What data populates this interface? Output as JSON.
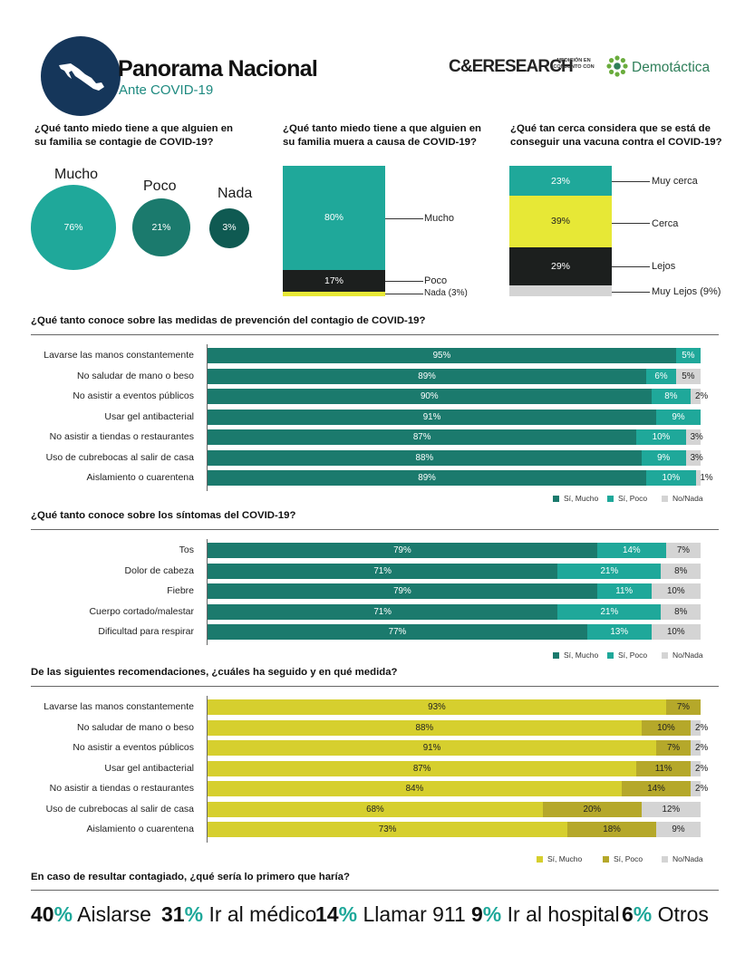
{
  "header": {
    "title": "Panorama Nacional",
    "subtitle": "Ante COVID-19",
    "brand_left": "C&ERESEARCH",
    "brand_middle": "MEDICIÓN EN CONJUNTO CON",
    "brand_right": "Demotáctica"
  },
  "colors": {
    "navy": "#15365a",
    "teal_dark": "#1b7a6d",
    "teal": "#1fa89a",
    "teal_mid": "#14756a",
    "teal_darkest": "#0f5a52",
    "black": "#1c1f1e",
    "yellow": "#e7e836",
    "gray": "#d4d4d4",
    "yellow_dark": "#d6cf2e",
    "olive": "#b5a82a",
    "green_bar": "#1b7a6d"
  },
  "q1": {
    "question": "¿Qué tanto miedo tiene a que alguien en su familia se contagie de COVID-19?",
    "items": [
      {
        "label": "Mucho",
        "value": "76%"
      },
      {
        "label": "Poco",
        "value": "21%"
      },
      {
        "label": "Nada",
        "value": "3%"
      }
    ]
  },
  "q2": {
    "question": "¿Qué tanto miedo tiene a que alguien en su familia muera a causa de COVID-19?",
    "items": [
      {
        "label": "Mucho",
        "value": "80%"
      },
      {
        "label": "Poco",
        "value": "17%"
      },
      {
        "label": "Nada (3%)",
        "value": ""
      }
    ]
  },
  "q3": {
    "question": "¿Qué tan cerca considera que se está de conseguir una vacuna contra el COVID-19?",
    "items": [
      {
        "label": "Muy cerca",
        "value": "23%"
      },
      {
        "label": "Cerca",
        "value": "39%"
      },
      {
        "label": "Lejos",
        "value": "29%"
      },
      {
        "label": "Muy Lejos (9%)",
        "value": ""
      }
    ]
  },
  "q4": {
    "question": "¿Qué tanto conoce sobre las medidas de prevención del contagio de COVID-19?",
    "legend": [
      "Sí, Mucho",
      "Sí, Poco",
      "No/Nada"
    ]
  },
  "q5": {
    "question": "¿Qué tanto conoce sobre los síntomas del COVID-19?",
    "legend": [
      "Sí, Mucho",
      "Sí, Poco",
      "No/Nada"
    ]
  },
  "q6": {
    "question": "De las siguientes recomendaciones, ¿cuáles ha seguido y en qué medida?",
    "legend": [
      "Sí, Mucho",
      "Sí, Poco",
      "No/Nada"
    ]
  },
  "q7": {
    "question": "En caso de resultar contagiado,  ¿qué sería lo primero que haría?",
    "items": [
      {
        "pct": "40",
        "sign": "%",
        "label": "Aislarse"
      },
      {
        "pct": "31",
        "sign": "%",
        "label": "Ir al médico"
      },
      {
        "pct": "14",
        "sign": "%",
        "label": "Llamar 911"
      },
      {
        "pct": "9",
        "sign": "%",
        "label": "Ir al hospital"
      },
      {
        "pct": "6",
        "sign": "%",
        "label": "Otros"
      }
    ]
  },
  "chart_data": [
    {
      "type": "bar",
      "title": "¿Qué tanto miedo tiene a que alguien en su familia se contagie de COVID-19?",
      "categories": [
        "Mucho",
        "Poco",
        "Nada"
      ],
      "values": [
        76,
        21,
        3
      ]
    },
    {
      "type": "bar",
      "title": "¿Qué tanto miedo tiene a que alguien en su familia muera a causa de COVID-19?",
      "categories": [
        "Mucho",
        "Poco",
        "Nada"
      ],
      "values": [
        80,
        17,
        3
      ]
    },
    {
      "type": "bar",
      "title": "¿Qué tan cerca considera que se está de conseguir una vacuna contra el COVID-19?",
      "categories": [
        "Muy cerca",
        "Cerca",
        "Lejos",
        "Muy Lejos"
      ],
      "values": [
        23,
        39,
        29,
        9
      ]
    },
    {
      "type": "bar",
      "title": "¿Qué tanto conoce sobre las medidas de prevención del contagio de COVID-19?",
      "categories": [
        "Lavarse las manos constantemente",
        "No saludar de mano o beso",
        "No asistir a eventos públicos",
        "Usar gel antibacterial",
        "No asistir a tiendas o restaurantes",
        "Uso de cubrebocas al salir de casa",
        "Aislamiento o cuarentena"
      ],
      "series": [
        {
          "name": "Sí, Mucho",
          "values": [
            95,
            89,
            90,
            91,
            87,
            88,
            89
          ]
        },
        {
          "name": "Sí, Poco",
          "values": [
            5,
            6,
            8,
            9,
            10,
            9,
            10
          ]
        },
        {
          "name": "No/Nada",
          "values": [
            null,
            5,
            2,
            null,
            3,
            3,
            1
          ]
        }
      ]
    },
    {
      "type": "bar",
      "title": "¿Qué tanto conoce sobre los síntomas del COVID-19?",
      "categories": [
        "Tos",
        "Dolor de cabeza",
        "Fiebre",
        "Cuerpo cortado/malestar",
        "Dificultad para respirar"
      ],
      "series": [
        {
          "name": "Sí, Mucho",
          "values": [
            79,
            71,
            79,
            71,
            77
          ]
        },
        {
          "name": "Sí, Poco",
          "values": [
            14,
            21,
            11,
            21,
            13
          ]
        },
        {
          "name": "No/Nada",
          "values": [
            7,
            8,
            10,
            8,
            10
          ]
        }
      ]
    },
    {
      "type": "bar",
      "title": "De las siguientes recomendaciones, ¿cuáles ha seguido y en qué medida?",
      "categories": [
        "Lavarse las manos constantemente",
        "No saludar de mano o beso",
        "No asistir a eventos públicos",
        "Usar gel antibacterial",
        "No asistir a tiendas o restaurantes",
        "Uso de cubrebocas al salir de casa",
        "Aislamiento o cuarentena"
      ],
      "series": [
        {
          "name": "Sí, Mucho",
          "values": [
            93,
            88,
            91,
            87,
            84,
            68,
            73
          ]
        },
        {
          "name": "Sí, Poco",
          "values": [
            7,
            10,
            7,
            11,
            14,
            20,
            18
          ]
        },
        {
          "name": "No/Nada",
          "values": [
            null,
            2,
            2,
            2,
            2,
            12,
            9
          ]
        }
      ]
    },
    {
      "type": "bar",
      "title": "En caso de resultar contagiado,  ¿qué sería lo primero que haría?",
      "categories": [
        "Aislarse",
        "Ir al médico",
        "Llamar 911",
        "Ir al hospital",
        "Otros"
      ],
      "values": [
        40,
        31,
        14,
        9,
        6
      ]
    }
  ]
}
